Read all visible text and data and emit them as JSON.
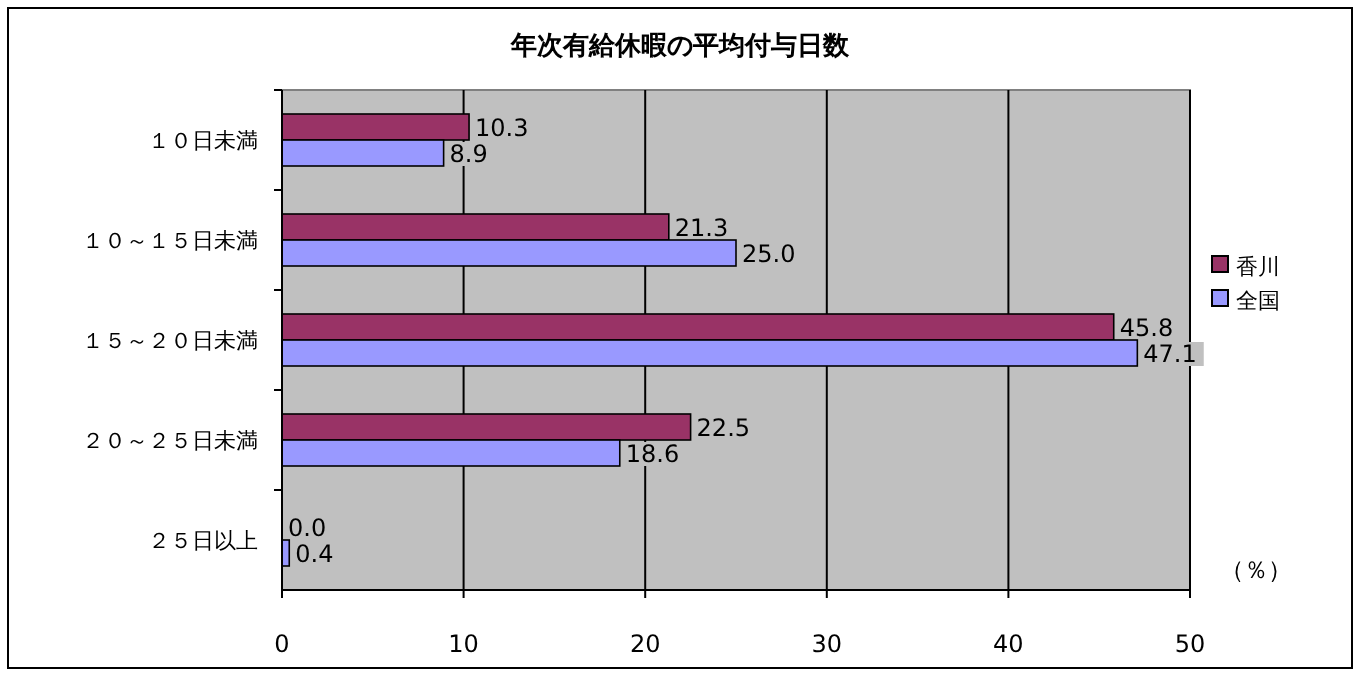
{
  "chart_data": {
    "type": "bar",
    "orientation": "horizontal",
    "title": "年次有給休暇の平均付与日数",
    "categories": [
      "１０日未満",
      "１０～１５日未満",
      "１５～２０日未満",
      "２０～２５日未満",
      "２５日以上"
    ],
    "series": [
      {
        "name": "香川",
        "color": "#993366",
        "values": [
          10.3,
          21.3,
          45.8,
          22.5,
          0.0
        ],
        "value_labels": [
          "10.3",
          "21.3",
          "45.8",
          "22.5",
          "0.0"
        ]
      },
      {
        "name": "全国",
        "color": "#9999ff",
        "values": [
          8.9,
          25.0,
          47.1,
          18.6,
          0.4
        ],
        "value_labels": [
          "8.9",
          "25.0",
          "47.1",
          "18.6",
          "0.4"
        ]
      }
    ],
    "xlim": [
      0,
      50
    ],
    "xticks": [
      0,
      10,
      20,
      30,
      40,
      50
    ],
    "grid": "x",
    "legend": "right",
    "annotations": [
      "（％）"
    ]
  }
}
